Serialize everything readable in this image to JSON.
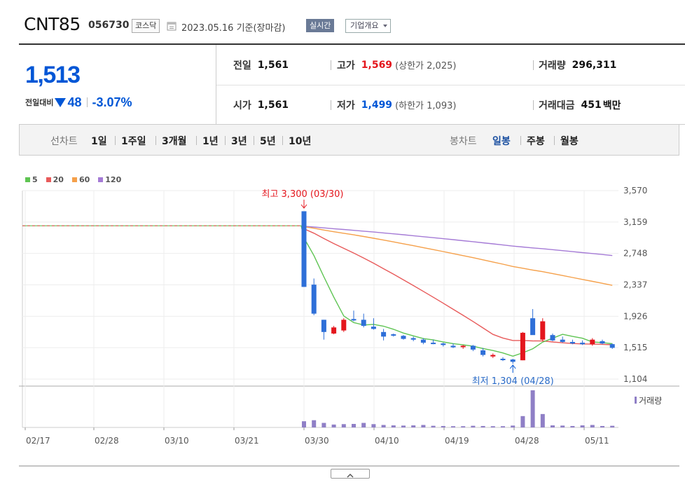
{
  "header": {
    "name": "CNT85",
    "code": "056730",
    "market": "코스닥",
    "date": "2023.05.16 기준(장마감)",
    "realtime_label": "실시간",
    "overview_label": "기업개요"
  },
  "summary": {
    "price": "1,513",
    "change_label": "전일대비",
    "change_value": "48",
    "change_pct": "-3.07%",
    "prev_close_label": "전일",
    "prev_close": "1,561",
    "high_label": "고가",
    "high": "1,569",
    "upper_limit": "(상한가 2,025)",
    "volume_label": "거래량",
    "volume": "296,311",
    "open_label": "시가",
    "open": "1,561",
    "low_label": "저가",
    "low": "1,499",
    "lower_limit": "(하한가 1,093)",
    "amount_label": "거래대금",
    "amount": "451",
    "amount_unit": "백만"
  },
  "period_tabs": {
    "label": "선차트",
    "items": [
      "1일",
      "1주일",
      "3개월",
      "1년",
      "3년",
      "5년",
      "10년"
    ]
  },
  "candle_tabs": {
    "label": "봉차트",
    "items": [
      "일봉",
      "주봉",
      "월봉"
    ],
    "active": "일봉"
  },
  "colors": {
    "up": "#e4161d",
    "down": "#2e6fd8",
    "ma5": "#5ec452",
    "ma20": "#e85a5a",
    "ma60": "#f5a04a",
    "ma120": "#a57bd6",
    "volume": "#8f7fc6"
  },
  "chart_data": {
    "type": "candlestick",
    "legend": [
      {
        "name": "5",
        "color": "#5ec452"
      },
      {
        "name": "20",
        "color": "#e85a5a"
      },
      {
        "name": "60",
        "color": "#f5a04a"
      },
      {
        "name": "120",
        "color": "#a57bd6"
      }
    ],
    "y_ticks": [
      "3,570",
      "3,159",
      "2,748",
      "2,337",
      "1,926",
      "1,515",
      "1,104"
    ],
    "ylim": [
      1104,
      3570
    ],
    "x_ticks": [
      "02/17",
      "02/28",
      "03/10",
      "03/21",
      "03/30",
      "04/10",
      "04/19",
      "04/28",
      "05/11"
    ],
    "max_annotation": "최고 3,300 (03/30)",
    "min_annotation": "최저 1,304 (04/28)",
    "volume_label": "거래량",
    "flat_price": 3110,
    "candles": [
      {
        "o": 3300,
        "h": 3300,
        "l": 2310,
        "c": 2310
      },
      {
        "o": 2340,
        "h": 2420,
        "l": 1940,
        "c": 1960
      },
      {
        "o": 1880,
        "h": 1880,
        "l": 1620,
        "c": 1720
      },
      {
        "o": 1700,
        "h": 1800,
        "l": 1690,
        "c": 1780
      },
      {
        "o": 1740,
        "h": 1900,
        "l": 1720,
        "c": 1880
      },
      {
        "o": 1890,
        "h": 2000,
        "l": 1860,
        "c": 1880
      },
      {
        "o": 1880,
        "h": 1960,
        "l": 1780,
        "c": 1800
      },
      {
        "o": 1790,
        "h": 1900,
        "l": 1750,
        "c": 1760
      },
      {
        "o": 1720,
        "h": 1760,
        "l": 1610,
        "c": 1660
      },
      {
        "o": 1690,
        "h": 1700,
        "l": 1660,
        "c": 1680
      },
      {
        "o": 1670,
        "h": 1680,
        "l": 1620,
        "c": 1630
      },
      {
        "o": 1640,
        "h": 1660,
        "l": 1600,
        "c": 1620
      },
      {
        "o": 1620,
        "h": 1640,
        "l": 1560,
        "c": 1580
      },
      {
        "o": 1580,
        "h": 1620,
        "l": 1560,
        "c": 1570
      },
      {
        "o": 1570,
        "h": 1580,
        "l": 1530,
        "c": 1550
      },
      {
        "o": 1540,
        "h": 1570,
        "l": 1510,
        "c": 1520
      },
      {
        "o": 1530,
        "h": 1550,
        "l": 1500,
        "c": 1540
      },
      {
        "o": 1540,
        "h": 1550,
        "l": 1470,
        "c": 1490
      },
      {
        "o": 1480,
        "h": 1510,
        "l": 1400,
        "c": 1420
      },
      {
        "o": 1400,
        "h": 1440,
        "l": 1380,
        "c": 1420
      },
      {
        "o": 1370,
        "h": 1390,
        "l": 1340,
        "c": 1360
      },
      {
        "o": 1360,
        "h": 1370,
        "l": 1304,
        "c": 1330
      },
      {
        "o": 1350,
        "h": 1720,
        "l": 1350,
        "c": 1710
      },
      {
        "o": 1900,
        "h": 2020,
        "l": 1700,
        "c": 1680
      },
      {
        "o": 1620,
        "h": 1900,
        "l": 1600,
        "c": 1860
      },
      {
        "o": 1680,
        "h": 1700,
        "l": 1600,
        "c": 1610
      },
      {
        "o": 1620,
        "h": 1660,
        "l": 1580,
        "c": 1590
      },
      {
        "o": 1590,
        "h": 1620,
        "l": 1560,
        "c": 1570
      },
      {
        "o": 1580,
        "h": 1610,
        "l": 1550,
        "c": 1560
      },
      {
        "o": 1560,
        "h": 1640,
        "l": 1540,
        "c": 1620
      },
      {
        "o": 1600,
        "h": 1620,
        "l": 1560,
        "c": 1570
      },
      {
        "o": 1561,
        "h": 1569,
        "l": 1499,
        "c": 1513
      }
    ],
    "volumes": [
      30,
      35,
      22,
      14,
      16,
      17,
      22,
      16,
      12,
      10,
      9,
      10,
      12,
      8,
      7,
      6,
      6,
      8,
      7,
      6,
      6,
      9,
      55,
      180,
      65,
      10,
      9,
      7,
      10,
      12,
      7,
      8
    ]
  }
}
